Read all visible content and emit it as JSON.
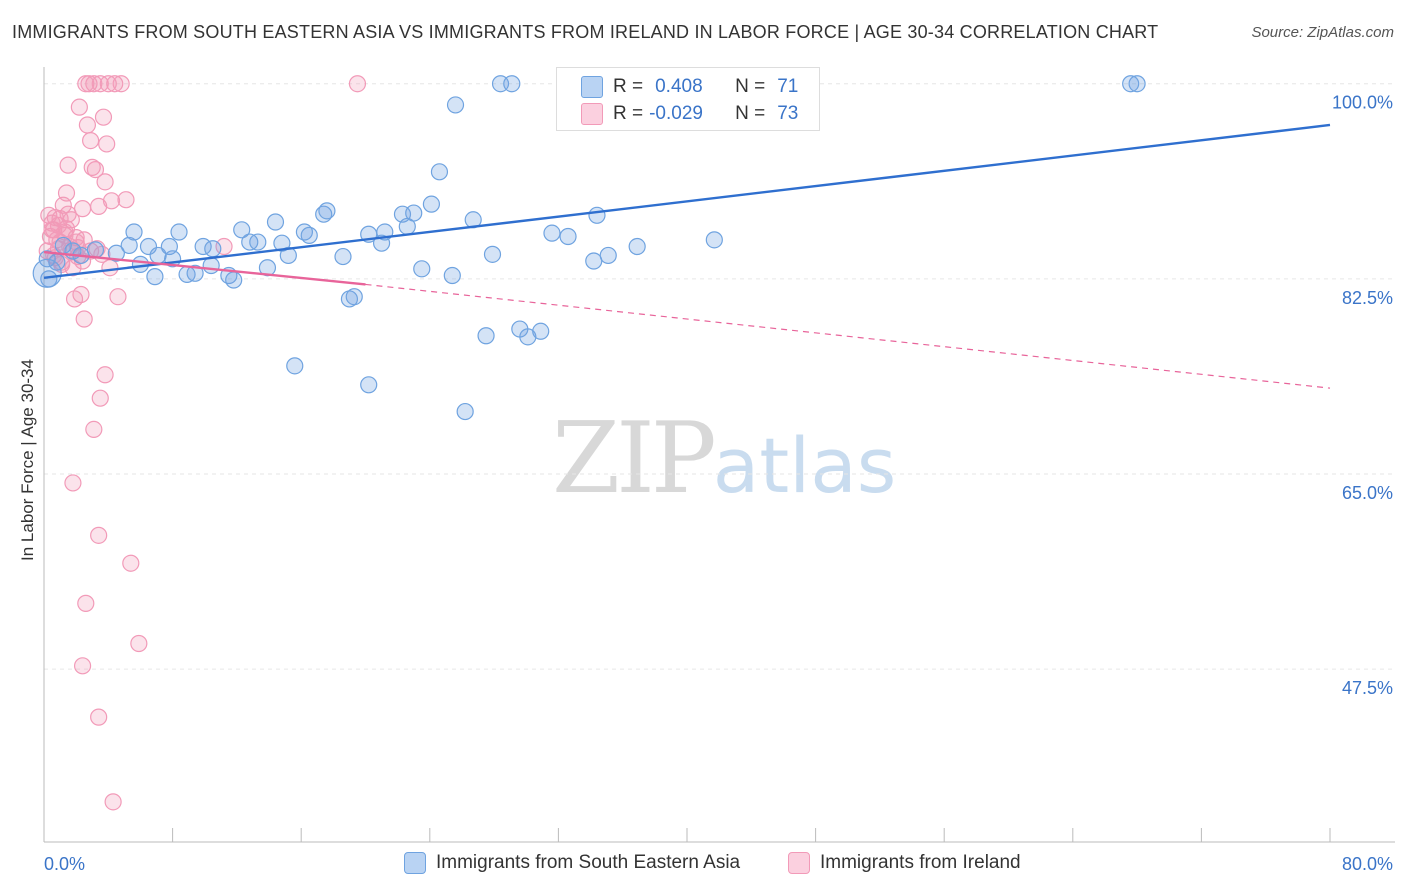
{
  "title": "IMMIGRANTS FROM SOUTH EASTERN ASIA VS IMMIGRANTS FROM IRELAND IN LABOR FORCE | AGE 30-34 CORRELATION CHART",
  "source": "Source: ZipAtlas.com",
  "watermark": {
    "zip": "ZIP",
    "atlas": "atlas"
  },
  "stats": {
    "blue": {
      "r_label": "R =",
      "r_value": "0.408",
      "n_label": "N =",
      "n_value": "71"
    },
    "pink": {
      "r_label": "R =",
      "r_value": "-0.029",
      "n_label": "N =",
      "n_value": "73"
    }
  },
  "colors": {
    "blue": "#6fa3e0",
    "blue_line": "#2f6fcf",
    "pink": "#f29ab8",
    "pink_line": "#e8649a",
    "tick_label": "#3a74c8",
    "grid": "#e6e6e6"
  },
  "chart_data": {
    "type": "scatter",
    "title": "IMMIGRANTS FROM SOUTH EASTERN ASIA VS IMMIGRANTS FROM IRELAND IN LABOR FORCE | AGE 30-34 CORRELATION CHART",
    "xlabel": "",
    "ylabel": "In Labor Force | Age 30-34",
    "xlim": [
      0,
      80
    ],
    "ylim": [
      32,
      101.5
    ],
    "x_tick_labels": [
      "0.0%",
      "80.0%"
    ],
    "y_ticks": [
      47.5,
      65.0,
      82.5,
      100.0
    ],
    "y_tick_labels": [
      "47.5%",
      "65.0%",
      "82.5%",
      "100.0%"
    ],
    "grid": true,
    "legend_position": "bottom",
    "series": [
      {
        "name": "Immigrants from South Eastern Asia",
        "color": "#6fa3e0",
        "trend": {
          "x": [
            0,
            80
          ],
          "y": [
            82.6,
            96.3
          ],
          "style": "solid"
        },
        "points": [
          [
            0.3,
            82.5
          ],
          [
            0.8,
            84.0
          ],
          [
            1.2,
            85.5
          ],
          [
            1.8,
            85.0
          ],
          [
            2.3,
            84.6
          ],
          [
            3.2,
            85.1
          ],
          [
            4.5,
            84.8
          ],
          [
            5.3,
            85.5
          ],
          [
            5.6,
            86.7
          ],
          [
            6.0,
            83.8
          ],
          [
            6.5,
            85.4
          ],
          [
            7.1,
            84.6
          ],
          [
            6.9,
            82.7
          ],
          [
            8.0,
            84.3
          ],
          [
            7.8,
            85.4
          ],
          [
            8.4,
            86.7
          ],
          [
            8.9,
            82.9
          ],
          [
            9.4,
            83.0
          ],
          [
            9.9,
            85.4
          ],
          [
            10.5,
            85.2
          ],
          [
            10.4,
            83.7
          ],
          [
            11.5,
            82.8
          ],
          [
            11.8,
            82.4
          ],
          [
            12.3,
            86.9
          ],
          [
            12.8,
            85.8
          ],
          [
            13.3,
            85.8
          ],
          [
            13.9,
            83.5
          ],
          [
            14.4,
            87.6
          ],
          [
            14.8,
            85.7
          ],
          [
            15.2,
            84.6
          ],
          [
            16.2,
            86.7
          ],
          [
            16.5,
            86.4
          ],
          [
            17.4,
            88.3
          ],
          [
            17.6,
            88.6
          ],
          [
            18.6,
            84.5
          ],
          [
            19.0,
            80.7
          ],
          [
            19.3,
            80.9
          ],
          [
            20.2,
            86.5
          ],
          [
            21.0,
            85.7
          ],
          [
            21.2,
            86.7
          ],
          [
            22.3,
            88.3
          ],
          [
            22.6,
            87.2
          ],
          [
            23.0,
            88.4
          ],
          [
            23.5,
            83.4
          ],
          [
            24.1,
            89.2
          ],
          [
            24.6,
            92.1
          ],
          [
            25.4,
            82.8
          ],
          [
            25.6,
            98.1
          ],
          [
            26.7,
            87.8
          ],
          [
            27.5,
            77.4
          ],
          [
            27.9,
            84.7
          ],
          [
            28.4,
            100.0
          ],
          [
            29.1,
            100.0
          ],
          [
            29.6,
            78.0
          ],
          [
            30.1,
            77.3
          ],
          [
            30.9,
            77.8
          ],
          [
            31.6,
            86.6
          ],
          [
            32.5,
            100.0
          ],
          [
            32.6,
            86.3
          ],
          [
            34.2,
            84.1
          ],
          [
            34.4,
            88.2
          ],
          [
            35.1,
            84.6
          ],
          [
            36.9,
            85.4
          ],
          [
            39.3,
            100.0
          ],
          [
            41.7,
            86.0
          ],
          [
            68.0,
            100.0
          ],
          [
            67.6,
            100.0
          ],
          [
            15.6,
            74.7
          ],
          [
            20.2,
            73.0
          ],
          [
            26.2,
            70.6
          ],
          [
            0.2,
            84.3
          ]
        ]
      },
      {
        "name": "Immigrants from Ireland",
        "color": "#f29ab8",
        "trend": {
          "x": [
            0,
            20,
            80
          ],
          "y": [
            84.9,
            82.0,
            72.7
          ],
          "style": "solid-then-dashed"
        },
        "points": [
          [
            0.2,
            85.0
          ],
          [
            0.4,
            86.3
          ],
          [
            0.5,
            87.5
          ],
          [
            0.6,
            84.6
          ],
          [
            0.7,
            88.0
          ],
          [
            0.8,
            86.0
          ],
          [
            0.9,
            85.2
          ],
          [
            1.0,
            87.9
          ],
          [
            1.1,
            84.0
          ],
          [
            1.2,
            89.1
          ],
          [
            1.3,
            86.4
          ],
          [
            1.4,
            90.2
          ],
          [
            1.5,
            92.7
          ],
          [
            1.6,
            85.4
          ],
          [
            1.7,
            87.8
          ],
          [
            1.8,
            83.5
          ],
          [
            1.9,
            80.7
          ],
          [
            2.0,
            85.8
          ],
          [
            2.1,
            84.5
          ],
          [
            2.2,
            97.9
          ],
          [
            2.3,
            81.1
          ],
          [
            2.4,
            88.8
          ],
          [
            2.5,
            86.0
          ],
          [
            2.6,
            100.0
          ],
          [
            2.7,
            96.3
          ],
          [
            2.8,
            100.0
          ],
          [
            2.9,
            94.9
          ],
          [
            3.0,
            92.5
          ],
          [
            3.1,
            100.0
          ],
          [
            3.2,
            92.3
          ],
          [
            3.3,
            85.2
          ],
          [
            3.4,
            89.0
          ],
          [
            3.5,
            100.0
          ],
          [
            3.6,
            84.7
          ],
          [
            3.7,
            97.0
          ],
          [
            3.8,
            91.2
          ],
          [
            3.9,
            94.6
          ],
          [
            4.0,
            100.0
          ],
          [
            4.1,
            83.5
          ],
          [
            4.2,
            89.5
          ],
          [
            4.4,
            100.0
          ],
          [
            4.6,
            80.9
          ],
          [
            4.8,
            100.0
          ],
          [
            5.1,
            89.6
          ],
          [
            11.2,
            85.4
          ],
          [
            19.5,
            100.0
          ],
          [
            0.3,
            88.2
          ],
          [
            0.6,
            86.9
          ],
          [
            1.0,
            85.8
          ],
          [
            1.4,
            87.0
          ],
          [
            2.0,
            86.2
          ],
          [
            2.4,
            84.1
          ],
          [
            1.1,
            83.8
          ],
          [
            2.5,
            78.9
          ],
          [
            3.8,
            73.9
          ],
          [
            3.5,
            71.8
          ],
          [
            3.1,
            69.0
          ],
          [
            1.8,
            64.2
          ],
          [
            3.4,
            59.5
          ],
          [
            5.4,
            57.0
          ],
          [
            2.6,
            53.4
          ],
          [
            5.9,
            49.8
          ],
          [
            2.4,
            47.8
          ],
          [
            3.4,
            43.2
          ],
          [
            4.3,
            35.6
          ],
          [
            0.5,
            86.9
          ],
          [
            1.7,
            85.1
          ],
          [
            0.9,
            87.3
          ],
          [
            1.3,
            86.7
          ],
          [
            2.1,
            85.3
          ],
          [
            0.7,
            84.4
          ],
          [
            1.5,
            88.3
          ],
          [
            2.9,
            85.0
          ]
        ]
      }
    ]
  },
  "legend": {
    "blue_label": "Immigrants from South Eastern Asia",
    "pink_label": "Immigrants from Ireland"
  }
}
